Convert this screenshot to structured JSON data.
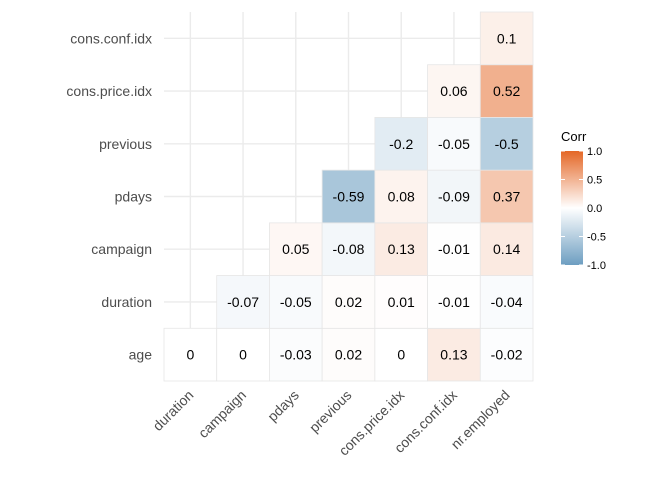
{
  "chart_data": {
    "type": "heatmap",
    "x_categories": [
      "duration",
      "campaign",
      "pdays",
      "previous",
      "cons.price.idx",
      "cons.conf.idx",
      "nr.employed"
    ],
    "y_categories": [
      "age",
      "duration",
      "campaign",
      "pdays",
      "previous",
      "cons.price.idx",
      "cons.conf.idx"
    ],
    "values": [
      [
        0,
        0,
        -0.03,
        0.02,
        0,
        0.13,
        -0.02
      ],
      [
        null,
        -0.07,
        -0.05,
        0.02,
        0.01,
        -0.01,
        -0.04
      ],
      [
        null,
        null,
        0.05,
        -0.08,
        0.13,
        -0.01,
        0.14
      ],
      [
        null,
        null,
        null,
        -0.59,
        0.08,
        -0.09,
        0.37
      ],
      [
        null,
        null,
        null,
        null,
        -0.2,
        -0.05,
        -0.5
      ],
      [
        null,
        null,
        null,
        null,
        null,
        0.06,
        0.52
      ],
      [
        null,
        null,
        null,
        null,
        null,
        null,
        0.1
      ]
    ],
    "legend": {
      "title": "Corr",
      "ticks": [
        1.0,
        0.5,
        0.0,
        -0.5,
        -1.0
      ],
      "tick_labels": [
        "1.0",
        "0.5",
        "0.0",
        "-0.5",
        "-1.0"
      ],
      "range": [
        -1,
        1
      ]
    },
    "colors": {
      "low": "#6d9ec1",
      "mid": "#ffffff",
      "high": "#e46726"
    },
    "xlabel": "",
    "ylabel": ""
  }
}
